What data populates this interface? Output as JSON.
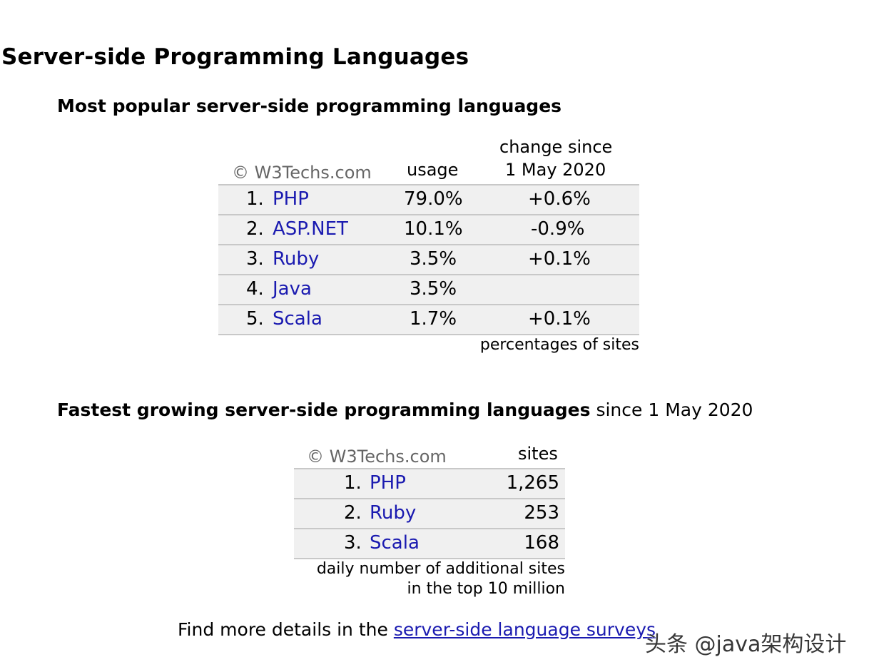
{
  "page": {
    "title": "Server-side Programming Languages"
  },
  "popular": {
    "heading": "Most popular server-side programming languages",
    "copyright": "© W3Techs.com",
    "col_usage": "usage",
    "col_change_line1": "change since",
    "col_change_line2": "1 May 2020",
    "rows": [
      {
        "rank": "1.",
        "name": "PHP",
        "usage": "79.0%",
        "change": "+0.6%"
      },
      {
        "rank": "2.",
        "name": "ASP.NET",
        "usage": "10.1%",
        "change": "-0.9%"
      },
      {
        "rank": "3.",
        "name": "Ruby",
        "usage": "3.5%",
        "change": "+0.1%"
      },
      {
        "rank": "4.",
        "name": "Java",
        "usage": "3.5%",
        "change": ""
      },
      {
        "rank": "5.",
        "name": "Scala",
        "usage": "1.7%",
        "change": "+0.1%"
      }
    ],
    "note": "percentages of sites"
  },
  "growing": {
    "heading": "Fastest growing server-side programming languages",
    "heading_suffix": " since 1 May 2020",
    "copyright": "© W3Techs.com",
    "col_sites": "sites",
    "rows": [
      {
        "rank": "1.",
        "name": "PHP",
        "sites": "1,265"
      },
      {
        "rank": "2.",
        "name": "Ruby",
        "sites": "253"
      },
      {
        "rank": "3.",
        "name": "Scala",
        "sites": "168"
      }
    ],
    "note_line1": "daily number of additional sites",
    "note_line2": "in the top 10 million"
  },
  "footer": {
    "prefix": "Find more details in the ",
    "link_text": "server-side language surveys"
  },
  "watermark": {
    "text": "头条 @java架构设计"
  }
}
